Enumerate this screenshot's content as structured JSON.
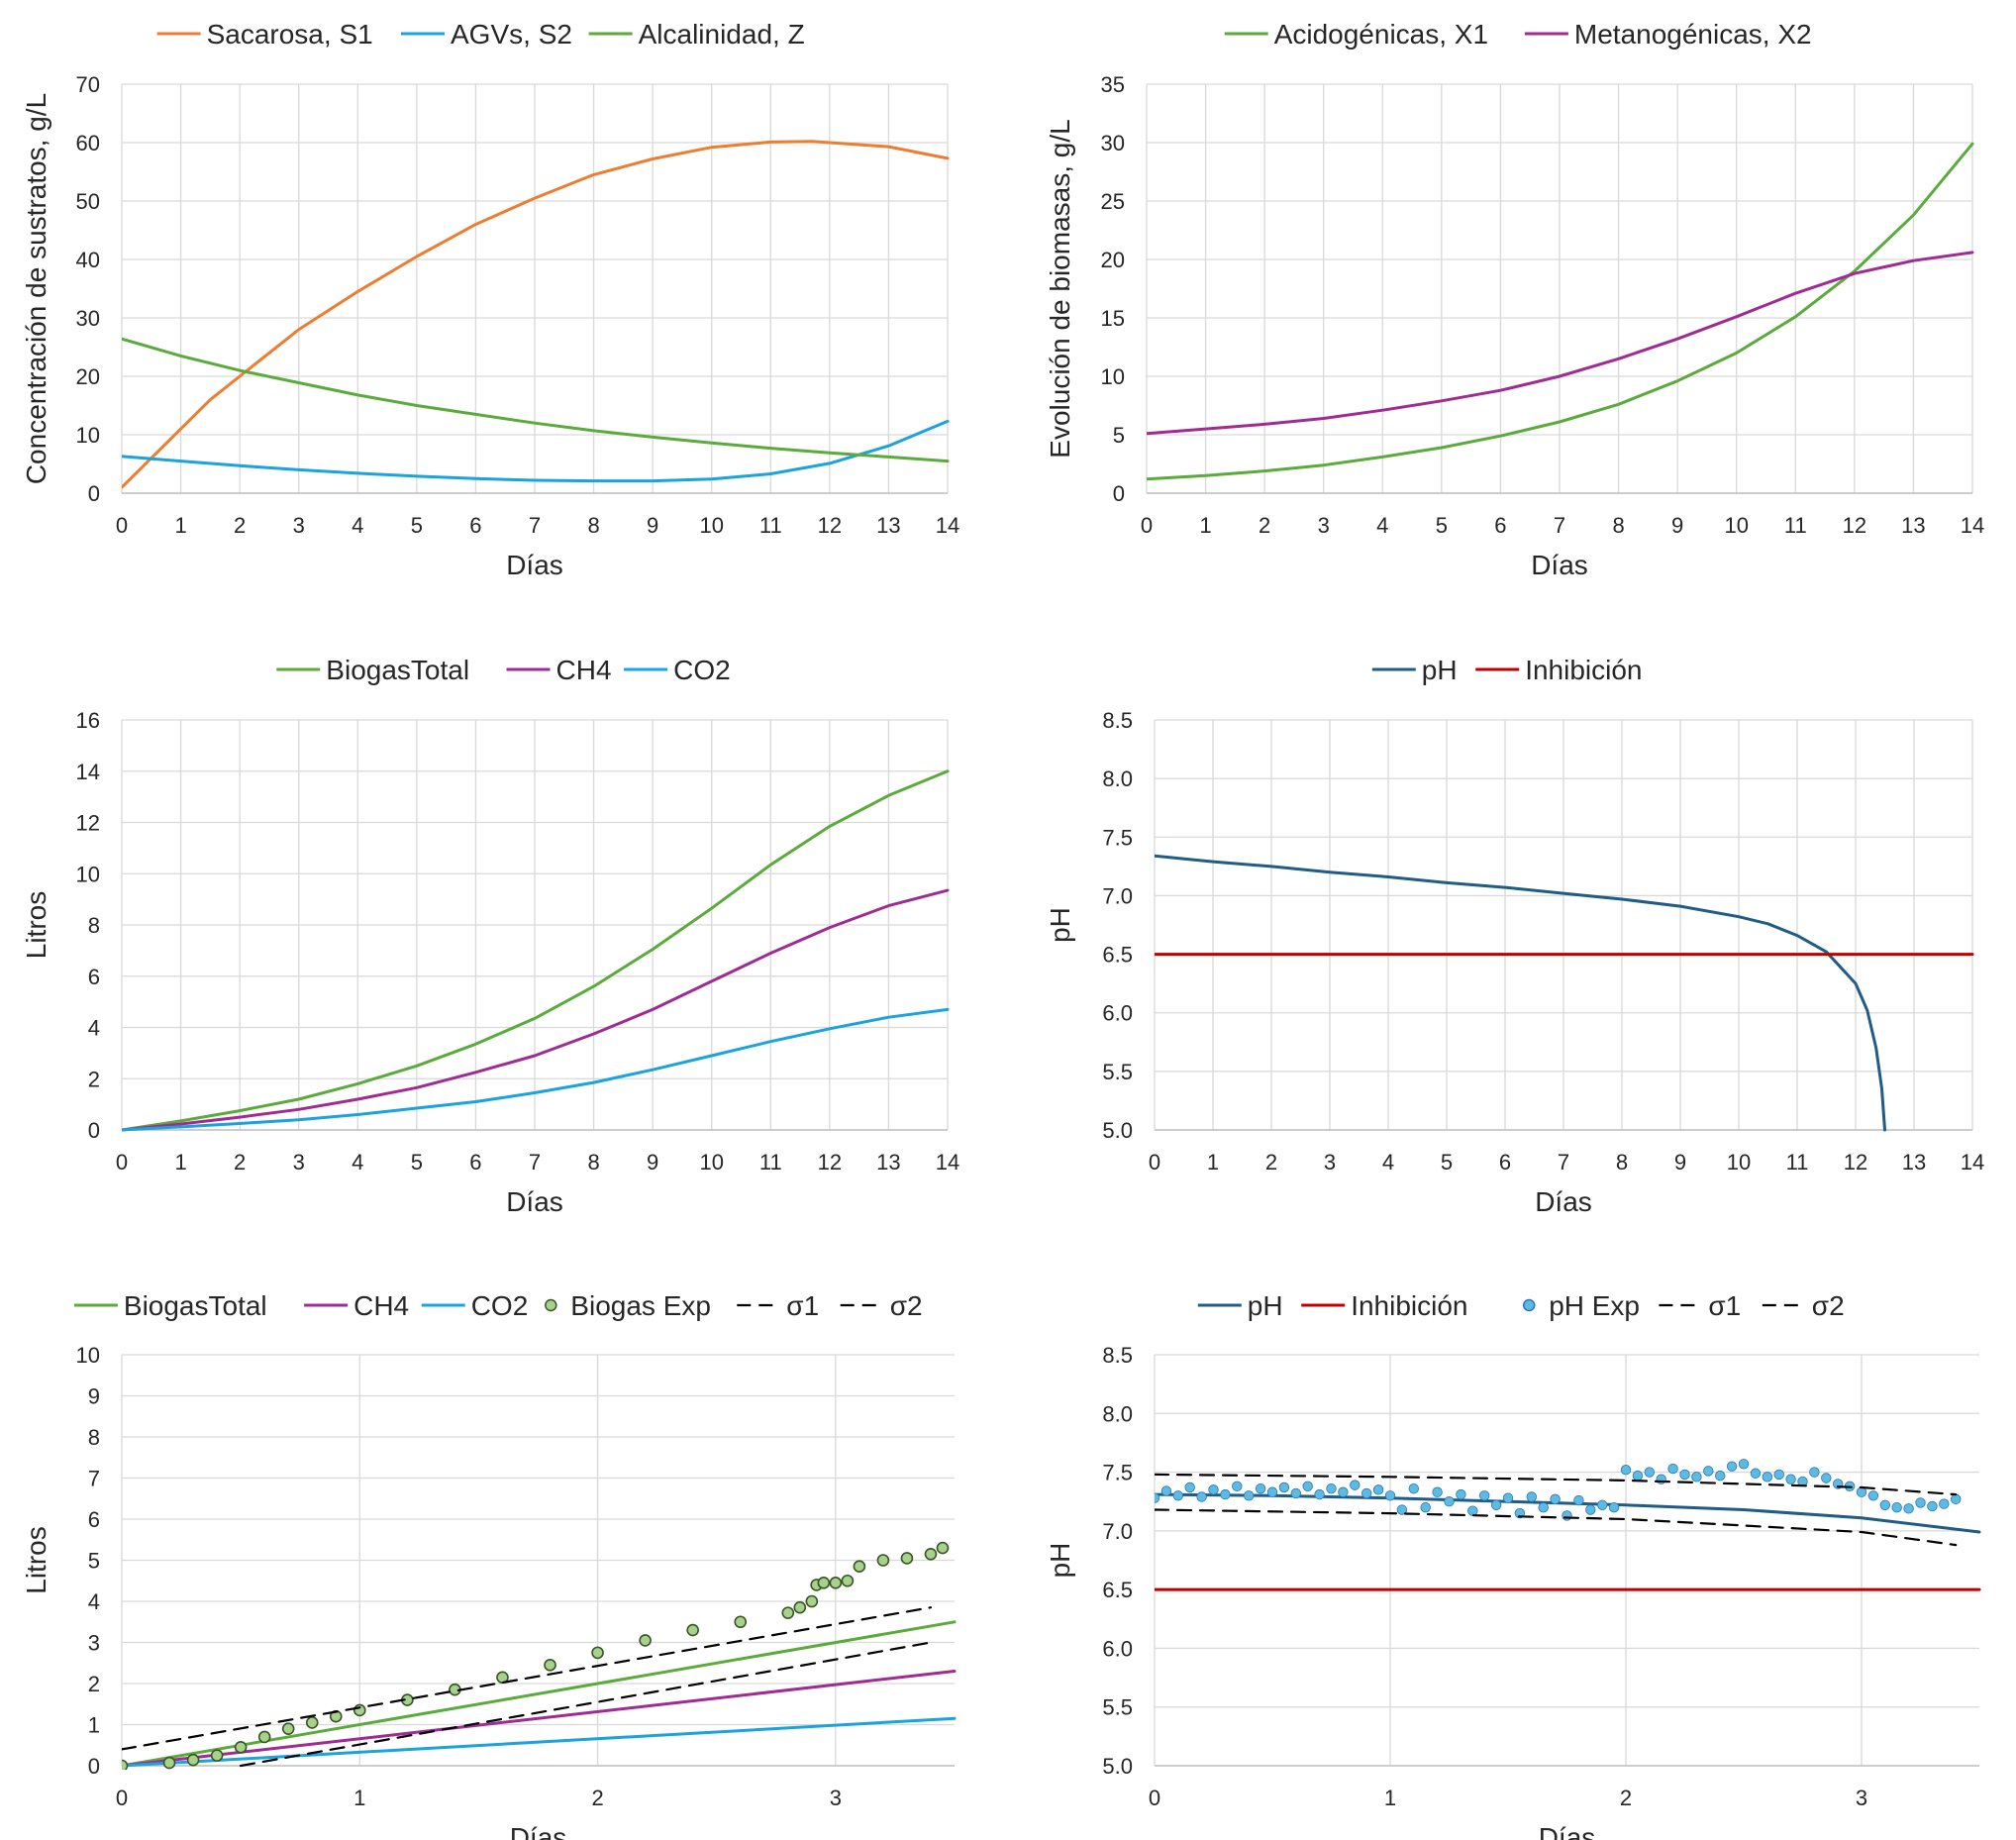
{
  "chart_data": [
    {
      "type": "line",
      "xlabel": "Días",
      "ylabel": "Concentración de sustratos, g/L",
      "xlim": [
        0,
        14
      ],
      "ylim": [
        0,
        70
      ],
      "xticks": [
        0,
        1,
        2,
        3,
        4,
        5,
        6,
        7,
        8,
        9,
        10,
        11,
        12,
        13,
        14
      ],
      "yticks": [
        0,
        10,
        20,
        30,
        40,
        50,
        60,
        70
      ],
      "grid": true,
      "legend_position": "top",
      "series": [
        {
          "name": "Sacarosa, S1",
          "color": "#ED7D31",
          "x": [
            0,
            0.5,
            1,
            1.5,
            2,
            3,
            4,
            5,
            6,
            7,
            8,
            9,
            10,
            11,
            11.7,
            12,
            13,
            14
          ],
          "y": [
            1,
            6,
            11,
            16,
            20,
            28,
            34.5,
            40.5,
            46,
            50.5,
            54.5,
            57.2,
            59.2,
            60.1,
            60.2,
            60.0,
            59.3,
            57.3
          ]
        },
        {
          "name": "AGVs, S2",
          "color": "#1AA3DD",
          "x": [
            0,
            1,
            2,
            3,
            4,
            5,
            6,
            7,
            8,
            9,
            10,
            11,
            12,
            13,
            14
          ],
          "y": [
            6.3,
            5.5,
            4.7,
            4,
            3.4,
            2.9,
            2.5,
            2.2,
            2.1,
            2.1,
            2.4,
            3.3,
            5.1,
            8.1,
            12.3
          ]
        },
        {
          "name": "Alcalinidad, Z",
          "color": "#5AAB3C",
          "x": [
            0,
            1,
            2,
            3,
            4,
            5,
            6,
            7,
            8,
            9,
            10,
            11,
            12,
            13,
            14
          ],
          "y": [
            26.4,
            23.5,
            21,
            18.9,
            16.8,
            15,
            13.5,
            12,
            10.7,
            9.6,
            8.6,
            7.7,
            6.9,
            6.2,
            5.5
          ]
        }
      ]
    },
    {
      "type": "line",
      "xlabel": "Días",
      "ylabel": "Evolución de biomasas, g/L",
      "xlim": [
        0,
        14
      ],
      "ylim": [
        0,
        35
      ],
      "xticks": [
        0,
        1,
        2,
        3,
        4,
        5,
        6,
        7,
        8,
        9,
        10,
        11,
        12,
        13,
        14
      ],
      "yticks": [
        0,
        5,
        10,
        15,
        20,
        25,
        30,
        35
      ],
      "grid": true,
      "legend_position": "top",
      "series": [
        {
          "name": "Acidogénicas, X1",
          "color": "#5AAB3C",
          "x": [
            0,
            1,
            2,
            3,
            4,
            5,
            6,
            7,
            8,
            9,
            10,
            11,
            12,
            13,
            14
          ],
          "y": [
            1.2,
            1.5,
            1.9,
            2.4,
            3.1,
            3.9,
            4.9,
            6.1,
            7.6,
            9.6,
            12,
            15.1,
            19,
            23.8,
            29.9
          ]
        },
        {
          "name": "Metanogénicas, X2",
          "color": "#A02B93",
          "x": [
            0,
            1,
            2,
            3,
            4,
            5,
            6,
            7,
            8,
            9,
            10,
            11,
            12,
            13,
            14
          ],
          "y": [
            5.1,
            5.5,
            5.9,
            6.4,
            7.1,
            7.9,
            8.8,
            10,
            11.5,
            13.2,
            15.1,
            17.1,
            18.8,
            19.9,
            20.6
          ]
        }
      ]
    },
    {
      "type": "line",
      "xlabel": "Días",
      "ylabel": "Litros",
      "xlim": [
        0,
        14
      ],
      "ylim": [
        0,
        16
      ],
      "xticks": [
        0,
        1,
        2,
        3,
        4,
        5,
        6,
        7,
        8,
        9,
        10,
        11,
        12,
        13,
        14
      ],
      "yticks": [
        0,
        2,
        4,
        6,
        8,
        10,
        12,
        14,
        16
      ],
      "grid": true,
      "legend_position": "top",
      "series": [
        {
          "name": "BiogasTotal",
          "color": "#5AAB3C",
          "x": [
            0,
            1,
            2,
            3,
            4,
            5,
            6,
            7,
            8,
            9,
            10,
            11,
            12,
            13,
            14
          ],
          "y": [
            0,
            0.35,
            0.75,
            1.2,
            1.8,
            2.5,
            3.35,
            4.35,
            5.6,
            7.05,
            8.65,
            10.35,
            11.85,
            13.05,
            14
          ]
        },
        {
          "name": "CH4",
          "color": "#A02B93",
          "x": [
            0,
            1,
            2,
            3,
            4,
            5,
            6,
            7,
            8,
            9,
            10,
            11,
            12,
            13,
            14
          ],
          "y": [
            0,
            0.23,
            0.5,
            0.8,
            1.2,
            1.65,
            2.25,
            2.9,
            3.75,
            4.7,
            5.8,
            6.9,
            7.9,
            8.75,
            9.35
          ]
        },
        {
          "name": "CO2",
          "color": "#1AA3DD",
          "x": [
            0,
            1,
            2,
            3,
            4,
            5,
            6,
            7,
            8,
            9,
            10,
            11,
            12,
            13,
            14
          ],
          "y": [
            0,
            0.12,
            0.25,
            0.4,
            0.6,
            0.85,
            1.1,
            1.45,
            1.85,
            2.35,
            2.9,
            3.45,
            3.95,
            4.4,
            4.7
          ]
        }
      ]
    },
    {
      "type": "line",
      "xlabel": "Días",
      "ylabel": "pH",
      "xlim": [
        0,
        14
      ],
      "ylim": [
        5.0,
        8.5
      ],
      "xticks": [
        0,
        1,
        2,
        3,
        4,
        5,
        6,
        7,
        8,
        9,
        10,
        11,
        12,
        13,
        14
      ],
      "yticks": [
        5.0,
        5.5,
        6.0,
        6.5,
        7.0,
        7.5,
        8.0,
        8.5
      ],
      "grid": true,
      "legend_position": "top",
      "series": [
        {
          "name": "pH",
          "color": "#1F5C86",
          "x": [
            0,
            1,
            2,
            3,
            4,
            5,
            6,
            7,
            8,
            9,
            10,
            10.5,
            11,
            11.5,
            12,
            12.2,
            12.35,
            12.45,
            12.5
          ],
          "y": [
            7.34,
            7.29,
            7.25,
            7.2,
            7.16,
            7.11,
            7.07,
            7.02,
            6.97,
            6.91,
            6.82,
            6.76,
            6.66,
            6.52,
            6.25,
            6.02,
            5.7,
            5.35,
            5.0
          ]
        },
        {
          "name": "Inhibición",
          "color": "#C00000",
          "x": [
            0,
            14
          ],
          "y": [
            6.5,
            6.5
          ]
        }
      ]
    },
    {
      "type": "line",
      "xlabel": "Días",
      "ylabel": "Litros",
      "xlim": [
        0,
        3.5
      ],
      "ylim": [
        0,
        10
      ],
      "xticks": [
        0,
        1,
        2,
        3
      ],
      "yticks": [
        0,
        1,
        2,
        3,
        4,
        5,
        6,
        7,
        8,
        9,
        10
      ],
      "grid": true,
      "legend_position": "top",
      "series": [
        {
          "name": "BiogasTotal",
          "color": "#5AAB3C",
          "x": [
            0,
            3.5
          ],
          "y": [
            0,
            3.5
          ]
        },
        {
          "name": "CH4",
          "color": "#A02B93",
          "x": [
            0,
            3.5
          ],
          "y": [
            0,
            2.3
          ]
        },
        {
          "name": "CO2",
          "color": "#1AA3DD",
          "x": [
            0,
            3.5
          ],
          "y": [
            0,
            1.15
          ]
        },
        {
          "name": "Biogas Exp",
          "color": "#5AAB3C",
          "style": "markers",
          "x": [
            0,
            0.2,
            0.3,
            0.4,
            0.5,
            0.6,
            0.7,
            0.8,
            0.9,
            1.0,
            1.2,
            1.4,
            1.6,
            1.8,
            2.0,
            2.2,
            2.4,
            2.6,
            2.8,
            2.85,
            2.9,
            2.92,
            2.95,
            3.0,
            3.05,
            3.1,
            3.2,
            3.3,
            3.4,
            3.45
          ],
          "y": [
            0,
            0.07,
            0.14,
            0.25,
            0.45,
            0.7,
            0.9,
            1.05,
            1.2,
            1.35,
            1.6,
            1.85,
            2.15,
            2.45,
            2.75,
            3.05,
            3.3,
            3.5,
            3.72,
            3.85,
            4.0,
            4.4,
            4.45,
            4.45,
            4.5,
            4.85,
            5.0,
            5.05,
            5.15,
            5.3
          ]
        },
        {
          "name": "σ1",
          "color": "#000000",
          "style": "dashed",
          "x": [
            0,
            3.4
          ],
          "y": [
            0.4,
            3.85
          ]
        },
        {
          "name": "σ2",
          "color": "#000000",
          "style": "dashed",
          "x": [
            0.5,
            3.4
          ],
          "y": [
            0,
            3.0
          ]
        }
      ]
    },
    {
      "type": "line",
      "xlabel": "Días",
      "ylabel": "pH",
      "xlim": [
        0,
        3.5
      ],
      "ylim": [
        5.0,
        8.5
      ],
      "xticks": [
        0,
        1,
        2,
        3
      ],
      "yticks": [
        5.0,
        5.5,
        6.0,
        6.5,
        7.0,
        7.5,
        8.0,
        8.5
      ],
      "grid": true,
      "legend_position": "top",
      "series": [
        {
          "name": "pH",
          "color": "#1F5C86",
          "x": [
            0,
            0.5,
            1,
            1.5,
            2,
            2.5,
            3,
            3.5
          ],
          "y": [
            7.31,
            7.3,
            7.28,
            7.25,
            7.22,
            7.18,
            7.11,
            6.99
          ]
        },
        {
          "name": "Inhibición",
          "color": "#C00000",
          "x": [
            0,
            3.5
          ],
          "y": [
            6.5,
            6.5
          ]
        },
        {
          "name": "pH Exp",
          "color": "#5BBBE3",
          "style": "markers",
          "x": [
            0,
            0.05,
            0.1,
            0.15,
            0.2,
            0.25,
            0.3,
            0.35,
            0.4,
            0.45,
            0.5,
            0.55,
            0.6,
            0.65,
            0.7,
            0.75,
            0.8,
            0.85,
            0.9,
            0.95,
            1.0,
            1.05,
            1.1,
            1.15,
            1.2,
            1.25,
            1.3,
            1.35,
            1.4,
            1.45,
            1.5,
            1.55,
            1.6,
            1.65,
            1.7,
            1.75,
            1.8,
            1.85,
            1.9,
            1.95,
            2.0,
            2.05,
            2.1,
            2.15,
            2.2,
            2.25,
            2.3,
            2.35,
            2.4,
            2.45,
            2.5,
            2.55,
            2.6,
            2.65,
            2.7,
            2.75,
            2.8,
            2.85,
            2.9,
            2.95,
            3.0,
            3.05,
            3.1,
            3.15,
            3.2,
            3.25,
            3.3,
            3.35,
            3.4
          ],
          "y": [
            7.28,
            7.34,
            7.3,
            7.37,
            7.29,
            7.35,
            7.31,
            7.38,
            7.3,
            7.36,
            7.33,
            7.37,
            7.32,
            7.38,
            7.31,
            7.36,
            7.33,
            7.39,
            7.32,
            7.35,
            7.3,
            7.18,
            7.36,
            7.2,
            7.33,
            7.25,
            7.31,
            7.17,
            7.3,
            7.22,
            7.28,
            7.15,
            7.29,
            7.2,
            7.27,
            7.13,
            7.26,
            7.18,
            7.22,
            7.2,
            7.52,
            7.47,
            7.5,
            7.44,
            7.53,
            7.48,
            7.46,
            7.51,
            7.47,
            7.55,
            7.57,
            7.49,
            7.46,
            7.48,
            7.44,
            7.42,
            7.5,
            7.45,
            7.4,
            7.38,
            7.33,
            7.3,
            7.22,
            7.2,
            7.19,
            7.24,
            7.21,
            7.23,
            7.27
          ]
        },
        {
          "name": "σ1",
          "color": "#000000",
          "style": "dashed",
          "x": [
            0,
            1,
            2,
            3,
            3.4
          ],
          "y": [
            7.48,
            7.46,
            7.43,
            7.37,
            7.31
          ]
        },
        {
          "name": "σ2",
          "color": "#000000",
          "style": "dashed",
          "x": [
            0,
            1,
            2,
            3,
            3.4
          ],
          "y": [
            7.18,
            7.15,
            7.1,
            6.99,
            6.88
          ]
        }
      ]
    }
  ]
}
